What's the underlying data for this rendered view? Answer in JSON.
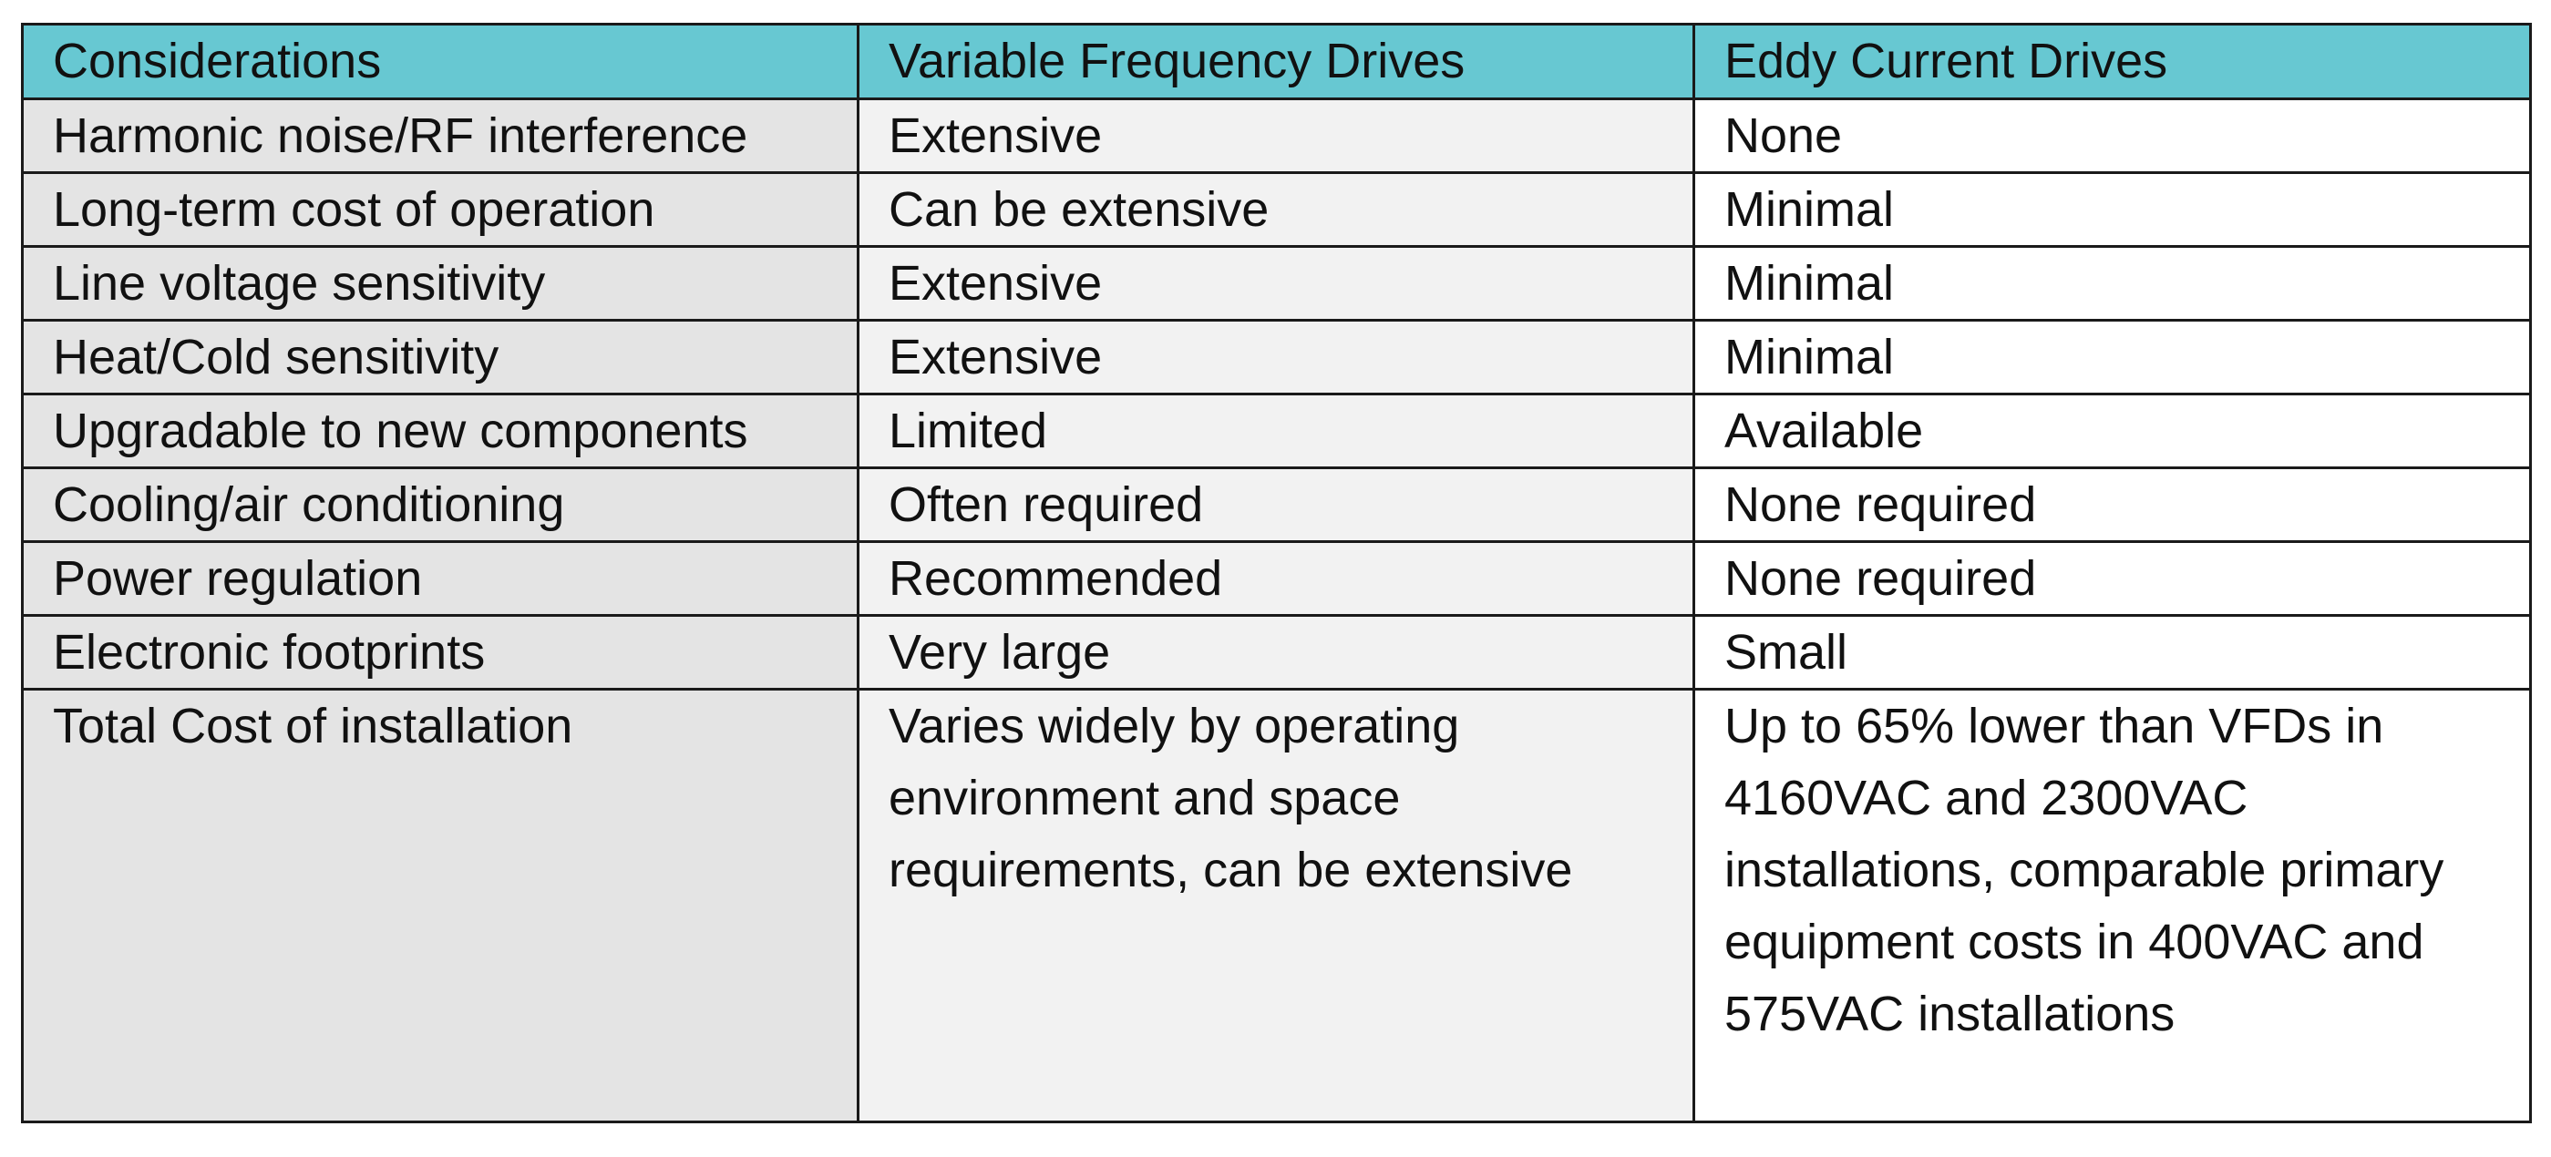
{
  "table": {
    "headers": [
      "Considerations",
      "Variable Frequency Drives",
      "Eddy Current Drives"
    ],
    "rows": [
      [
        "Harmonic noise/RF interference",
        "Extensive",
        "None"
      ],
      [
        "Long-term cost of operation",
        "Can be extensive",
        "Minimal"
      ],
      [
        "Line voltage sensitivity",
        "Extensive",
        "Minimal"
      ],
      [
        "Heat/Cold sensitivity",
        "Extensive",
        "Minimal"
      ],
      [
        "Upgradable to new components",
        "Limited",
        "Available"
      ],
      [
        "Cooling/air conditioning",
        "Often required",
        "None required"
      ],
      [
        "Power regulation",
        "Recommended",
        "None required"
      ],
      [
        "Electronic footprints",
        "Very large",
        "Small"
      ],
      [
        "Total Cost of installation",
        "Varies widely by operating environment and space requirements, can be extensive",
        "Up to 65% lower than VFDs in 4160VAC and 2300VAC installations, comparable primary equipment costs in 400VAC and 575VAC installations"
      ]
    ]
  },
  "colors": {
    "header_bg": "#67c8d2",
    "consideration_col_bg": "#e4e4e4",
    "vfd_col_bg": "#f2f2f2",
    "eddy_col_bg": "#ffffff",
    "border": "#1a1a1a"
  }
}
